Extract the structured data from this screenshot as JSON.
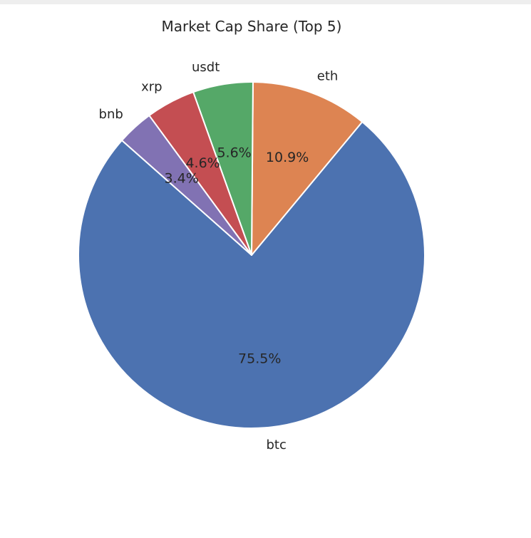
{
  "chart_data": {
    "type": "pie",
    "title": "Market Cap Share (Top 5)",
    "categories": [
      "btc",
      "eth",
      "usdt",
      "xrp",
      "bnb"
    ],
    "values": [
      75.5,
      10.9,
      5.6,
      4.6,
      3.4
    ],
    "percent_labels": [
      "75.5%",
      "10.9%",
      "5.6%",
      "4.6%",
      "3.4%"
    ],
    "colors": [
      "#4c72b0",
      "#dd8452",
      "#55a868",
      "#c44e52",
      "#8172b3"
    ],
    "start_angle": "counter-clockwise from about 138 degrees",
    "legend": "none"
  }
}
